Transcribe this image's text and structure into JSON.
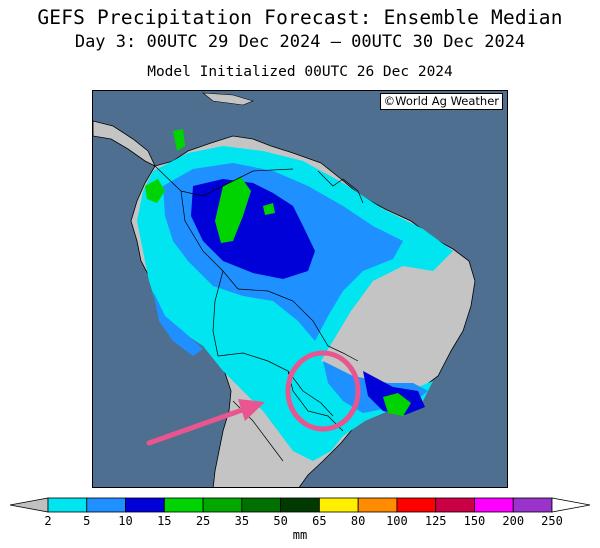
{
  "header": {
    "title": "GEFS Precipitation Forecast: Ensemble Median",
    "period": "Day 3: 00UTC 29 Dec 2024 — 00UTC 30 Dec 2024",
    "init": "Model Initialized 00UTC 26 Dec 2024"
  },
  "map": {
    "credit": "©World Ag Weather",
    "annotation": "magenta circle with arrow highlighting northern Paraguay / Mato Grosso do Sul region"
  },
  "colorbar": {
    "units": "mm",
    "ticks": [
      "2",
      "5",
      "10",
      "15",
      "25",
      "35",
      "50",
      "65",
      "80",
      "100",
      "125",
      "150",
      "200",
      "250"
    ],
    "colors": [
      "#00e5f0",
      "#1e90ff",
      "#0000d8",
      "#00d400",
      "#00a800",
      "#007000",
      "#003a00",
      "#fff000",
      "#ff8c00",
      "#ff0000",
      "#cc0044",
      "#ff00ff",
      "#9933cc"
    ],
    "under_color": "#c0c0c0",
    "over_color": "#ffffff"
  },
  "colors": {
    "ocean": "#4e6f8f",
    "land": "#c4c4c4",
    "annotation": "#e8558f"
  }
}
